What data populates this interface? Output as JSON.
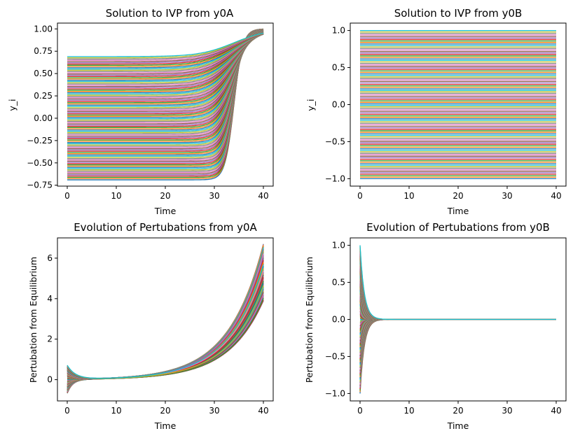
{
  "figure": {
    "background": "#ffffff"
  },
  "palette": [
    "#1f77b4",
    "#ff7f0e",
    "#2ca02c",
    "#d62728",
    "#9467bd",
    "#8c564b",
    "#e377c2",
    "#7f7f7f",
    "#bcbd22",
    "#17becf"
  ],
  "chart_data": [
    {
      "id": "ivp-a",
      "type": "line",
      "title": "Solution to IVP from y0A",
      "xlabel": "Time",
      "ylabel": "y_i",
      "xlim": [
        -2,
        42
      ],
      "ylim": [
        -0.76,
        1.065
      ],
      "x_ticks": [
        0,
        10,
        20,
        30,
        40
      ],
      "x_tick_labels": [
        "0",
        "10",
        "20",
        "30",
        "40"
      ],
      "y_ticks": [
        -0.75,
        -0.5,
        -0.25,
        0.0,
        0.25,
        0.5,
        0.75,
        1.0
      ],
      "y_tick_labels": [
        "−0.75",
        "−0.50",
        "−0.25",
        "0.00",
        "0.25",
        "0.50",
        "0.75",
        "1.00"
      ],
      "t_range": [
        0,
        40
      ],
      "series_count": 100,
      "initial_range": [
        -0.69,
        0.69
      ],
      "final_value": 1.0,
      "rise_center_time": [
        20,
        34
      ],
      "grid": false,
      "legend": "none"
    },
    {
      "id": "ivp-b",
      "type": "line",
      "title": "Solution to IVP from y0B",
      "xlabel": "Time",
      "ylabel": "y_i",
      "xlim": [
        -2,
        42
      ],
      "ylim": [
        -1.1,
        1.1
      ],
      "x_ticks": [
        0,
        10,
        20,
        30,
        40
      ],
      "x_tick_labels": [
        "0",
        "10",
        "20",
        "30",
        "40"
      ],
      "y_ticks": [
        -1.0,
        -0.5,
        0.0,
        0.5,
        1.0
      ],
      "y_tick_labels": [
        "−1.0",
        "−0.5",
        "0.0",
        "0.5",
        "1.0"
      ],
      "t_range": [
        0,
        40
      ],
      "series_count": 100,
      "initial_range": [
        -1.0,
        1.0
      ],
      "grid": false,
      "legend": "none"
    },
    {
      "id": "pert-a",
      "type": "line",
      "title": "Evolution of Pertubations from y0A",
      "xlabel": "Time",
      "ylabel": "Pertubation from Equilibrium",
      "xlim": [
        -2,
        42
      ],
      "ylim": [
        -1.05,
        7.0
      ],
      "x_ticks": [
        0,
        10,
        20,
        30,
        40
      ],
      "x_tick_labels": [
        "0",
        "10",
        "20",
        "30",
        "40"
      ],
      "y_ticks": [
        0,
        2,
        4,
        6
      ],
      "y_tick_labels": [
        "0",
        "2",
        "4",
        "6"
      ],
      "t_range": [
        0,
        40
      ],
      "series_count": 100,
      "initial_range": [
        -0.69,
        0.69
      ],
      "final_range": [
        3.9,
        6.7
      ],
      "grid": false,
      "legend": "none"
    },
    {
      "id": "pert-b",
      "type": "line",
      "title": "Evolution of Pertubations from y0B",
      "xlabel": "Time",
      "ylabel": "Pertubation from Equilibrium",
      "xlim": [
        -2,
        42
      ],
      "ylim": [
        -1.1,
        1.1
      ],
      "x_ticks": [
        0,
        10,
        20,
        30,
        40
      ],
      "x_tick_labels": [
        "0",
        "10",
        "20",
        "30",
        "40"
      ],
      "y_ticks": [
        -1.0,
        -0.5,
        0.0,
        0.5,
        1.0
      ],
      "y_tick_labels": [
        "−1.0",
        "−0.5",
        "0.0",
        "0.5",
        "1.0"
      ],
      "t_range": [
        0,
        40
      ],
      "series_count": 100,
      "initial_range": [
        -1.0,
        1.0
      ],
      "final_value": 0.0,
      "grid": false,
      "legend": "none"
    }
  ]
}
